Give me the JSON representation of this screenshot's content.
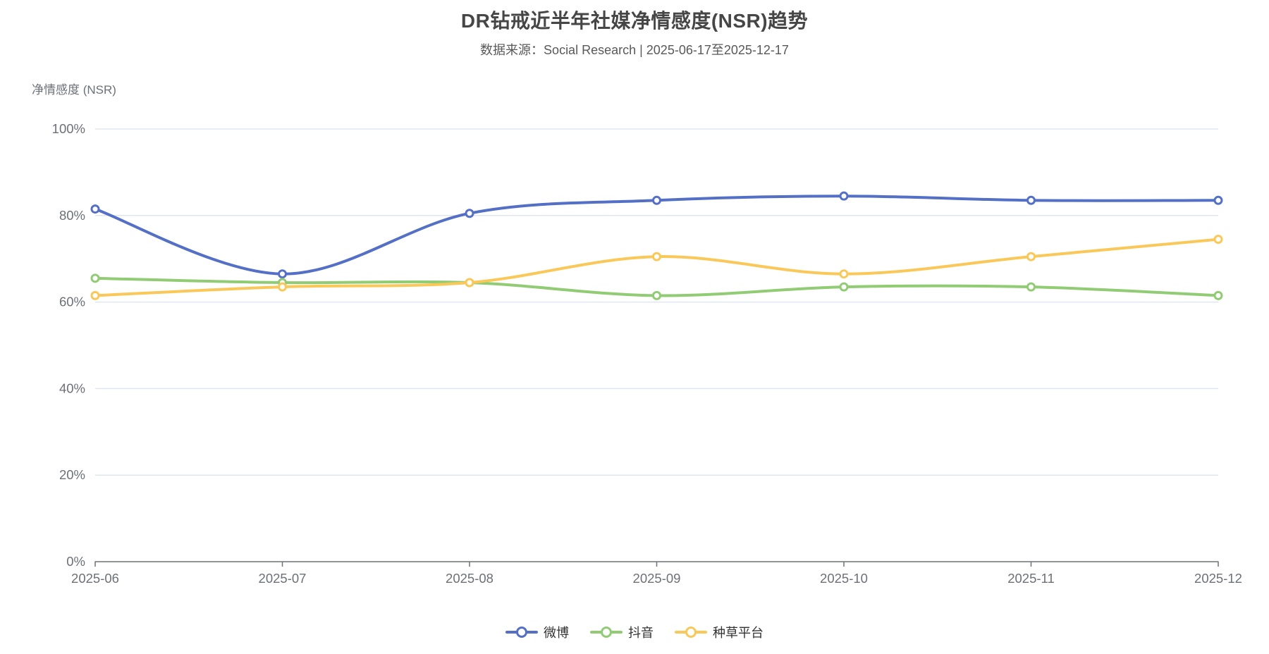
{
  "chart_data": {
    "type": "line",
    "title": "DR钻戒近半年社媒净情感度(NSR)趋势",
    "subtitle": "数据来源：Social Research | 2025-06-17至2025-12-17",
    "ylabel": "净情感度 (NSR)",
    "xlabel": "",
    "categories": [
      "2025-06",
      "2025-07",
      "2025-08",
      "2025-09",
      "2025-10",
      "2025-11",
      "2025-12"
    ],
    "series": [
      {
        "name": "微博",
        "color": "#5470c6",
        "values": [
          81.5,
          66.5,
          80.5,
          83.5,
          84.5,
          83.5,
          83.5
        ]
      },
      {
        "name": "抖音",
        "color": "#91cc75",
        "values": [
          65.5,
          64.5,
          64.5,
          61.5,
          63.5,
          63.5,
          61.5
        ]
      },
      {
        "name": "种草平台",
        "color": "#fac858",
        "values": [
          61.5,
          63.5,
          64.5,
          70.5,
          66.5,
          70.5,
          74.5
        ]
      }
    ],
    "y_ticks": [
      "0%",
      "20%",
      "40%",
      "60%",
      "80%",
      "100%"
    ],
    "y_tick_values": [
      0,
      20,
      40,
      60,
      80,
      100
    ],
    "ylim": [
      0,
      100
    ],
    "grid": true,
    "smooth": true,
    "legend_position": "bottom",
    "marker": "hollow-circle"
  },
  "colors": {
    "background": "#ffffff",
    "title_text": "#464646",
    "subtitle_text": "#595959",
    "axis_label": "#6E7079",
    "axis_line": "#6E7079",
    "grid_line": "#E0E6F1",
    "legend_text": "#333333"
  }
}
